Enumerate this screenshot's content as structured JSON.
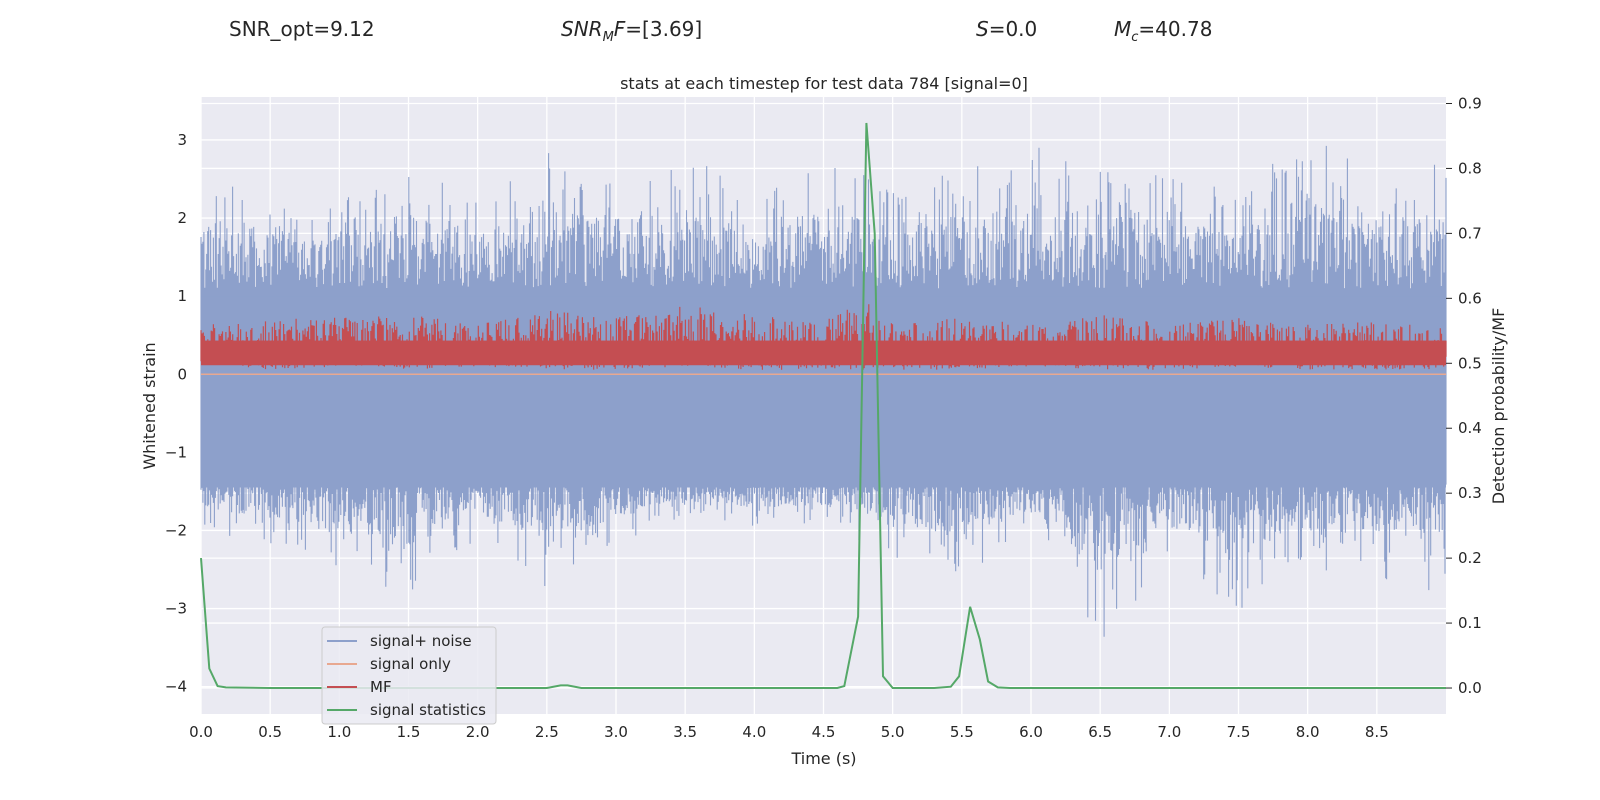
{
  "header": {
    "snr_opt": "SNR_opt=9.12",
    "snr_mf_name": "SNR",
    "snr_mf_sub": "M",
    "snr_mf_tail": "F",
    "snr_mf_value": "=[3.69]",
    "s_name": "S",
    "s_value": "=0.0",
    "mc_name": "M",
    "mc_sub": "c",
    "mc_value": "=40.78"
  },
  "chart_data": {
    "type": "line",
    "title": "stats at each timestep for test data 784 [signal=0]",
    "xlabel": "Time (s)",
    "ylabel": "Whitened strain",
    "y2label": "Detection probability/MF",
    "xlim": [
      0.0,
      9.0
    ],
    "ylim": [
      -4.35,
      3.55
    ],
    "y2lim": [
      -0.04,
      0.91
    ],
    "xticks": [
      "0.0",
      "0.5",
      "1.0",
      "1.5",
      "2.0",
      "2.5",
      "3.0",
      "3.5",
      "4.0",
      "4.5",
      "5.0",
      "5.5",
      "6.0",
      "6.5",
      "7.0",
      "7.5",
      "8.0",
      "8.5"
    ],
    "yticks": [
      "3",
      "2",
      "1",
      "0",
      "−1",
      "−2",
      "−3",
      "−4"
    ],
    "y2ticks": [
      "0.9",
      "0.8",
      "0.7",
      "0.6",
      "0.5",
      "0.4",
      "0.3",
      "0.2",
      "0.1",
      "0.0"
    ],
    "grid": true,
    "legend_position": "lower-left",
    "colors": {
      "noise": "#8da0cb",
      "signal": "#e8a890",
      "mf": "#c44e52",
      "stats": "#55a868",
      "background": "#eaeaf2"
    },
    "series": [
      {
        "name": "signal+ noise",
        "axis": "left",
        "approximate": "noise band roughly -1.5 to 1.5, peaks to 3.2 and dips to -4.0",
        "x": [
          0.0,
          0.5,
          1.0,
          1.5,
          2.0,
          2.5,
          3.0,
          3.5,
          4.0,
          4.5,
          5.0,
          5.5,
          6.0,
          6.5,
          7.0,
          7.5,
          8.0,
          8.5,
          9.0
        ],
        "upper": [
          2.5,
          2.45,
          2.2,
          2.85,
          2.2,
          3.05,
          2.65,
          2.95,
          2.15,
          2.95,
          2.4,
          2.7,
          2.95,
          2.65,
          2.6,
          2.3,
          3.15,
          2.55,
          2.8
        ],
        "lower": [
          -2.0,
          -2.2,
          -2.6,
          -2.85,
          -2.1,
          -2.8,
          -2.2,
          -1.8,
          -2.0,
          -1.9,
          -2.4,
          -2.6,
          -2.0,
          -3.5,
          -2.4,
          -3.05,
          -2.5,
          -2.6,
          -2.9
        ]
      },
      {
        "name": "signal only",
        "axis": "left",
        "x": [
          0.0,
          9.0
        ],
        "y": [
          0.0,
          0.0
        ]
      },
      {
        "name": "MF",
        "axis": "right",
        "approximate": "band roughly 0.49 to 0.58 on right axis",
        "x": [
          0.0,
          0.5,
          1.0,
          1.5,
          2.0,
          2.5,
          3.0,
          3.5,
          4.0,
          4.5,
          4.8,
          5.0,
          5.5,
          6.0,
          6.5,
          7.0,
          7.5,
          8.0,
          8.5,
          9.0
        ],
        "upper": [
          0.56,
          0.57,
          0.57,
          0.575,
          0.56,
          0.585,
          0.57,
          0.59,
          0.575,
          0.565,
          0.6,
          0.56,
          0.57,
          0.56,
          0.575,
          0.56,
          0.57,
          0.56,
          0.565,
          0.555
        ],
        "lower": [
          0.5,
          0.49,
          0.495,
          0.49,
          0.495,
          0.49,
          0.49,
          0.495,
          0.49,
          0.49,
          0.49,
          0.49,
          0.49,
          0.495,
          0.49,
          0.49,
          0.495,
          0.49,
          0.49,
          0.49
        ]
      },
      {
        "name": "signal statistics",
        "axis": "right",
        "x": [
          0.0,
          0.06,
          0.12,
          0.18,
          0.5,
          1.0,
          2.0,
          2.5,
          2.6,
          2.65,
          2.75,
          3.0,
          4.0,
          4.6,
          4.65,
          4.75,
          4.81,
          4.87,
          4.93,
          5.0,
          5.1,
          5.3,
          5.42,
          5.48,
          5.56,
          5.63,
          5.69,
          5.76,
          5.85,
          6.0,
          9.0
        ],
        "y": [
          0.2,
          0.03,
          0.003,
          0.001,
          0.0,
          0.0,
          0.0,
          0.0,
          0.004,
          0.004,
          0.0,
          0.0,
          0.0,
          0.0,
          0.003,
          0.11,
          0.87,
          0.7,
          0.018,
          0.0,
          0.0,
          0.0,
          0.002,
          0.018,
          0.125,
          0.075,
          0.01,
          0.001,
          0.0,
          0.0,
          0.0
        ]
      }
    ]
  }
}
